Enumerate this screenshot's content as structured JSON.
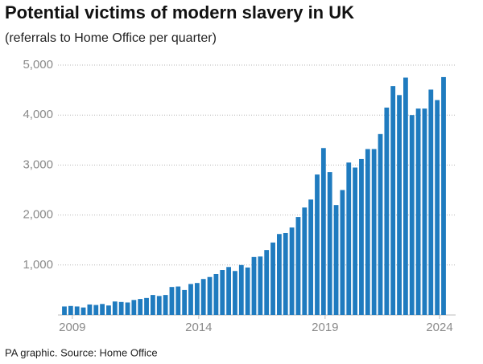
{
  "chart_data": {
    "type": "bar",
    "title": "Potential victims of modern slavery in UK",
    "subtitle": "(referrals to Home Office per quarter)",
    "source": "PA graphic. Source: Home Office",
    "color": "#1f7bbf",
    "categories": [
      null,
      "2009",
      null,
      null,
      null,
      null,
      null,
      null,
      null,
      null,
      null,
      null,
      null,
      null,
      null,
      null,
      null,
      null,
      null,
      null,
      null,
      "2014",
      null,
      null,
      null,
      null,
      null,
      null,
      null,
      null,
      null,
      null,
      null,
      null,
      null,
      null,
      null,
      null,
      null,
      null,
      null,
      "2019",
      null,
      null,
      null,
      null,
      null,
      null,
      null,
      null,
      null,
      null,
      null,
      null,
      null,
      null,
      null,
      null,
      null,
      null,
      "2024"
    ],
    "values": [
      170,
      180,
      170,
      150,
      210,
      200,
      220,
      190,
      270,
      260,
      250,
      300,
      320,
      340,
      400,
      380,
      400,
      560,
      570,
      500,
      620,
      640,
      720,
      760,
      820,
      900,
      960,
      880,
      1000,
      950,
      1160,
      1170,
      1300,
      1450,
      1620,
      1640,
      1750,
      1960,
      2150,
      2310,
      2810,
      3340,
      2860,
      2200,
      2500,
      3050,
      2950,
      3120,
      3320,
      3320,
      3620,
      4150,
      4580,
      4400,
      4750,
      4000,
      4130,
      4130,
      4510,
      4300,
      4760
    ],
    "ylim": [
      0,
      5000
    ],
    "yticks": [
      {
        "value": 1000,
        "label": "1,000"
      },
      {
        "value": 2000,
        "label": "2,000"
      },
      {
        "value": 3000,
        "label": "3,000"
      },
      {
        "value": 4000,
        "label": "4,000"
      },
      {
        "value": 5000,
        "label": "5,000"
      }
    ],
    "grid": true
  }
}
